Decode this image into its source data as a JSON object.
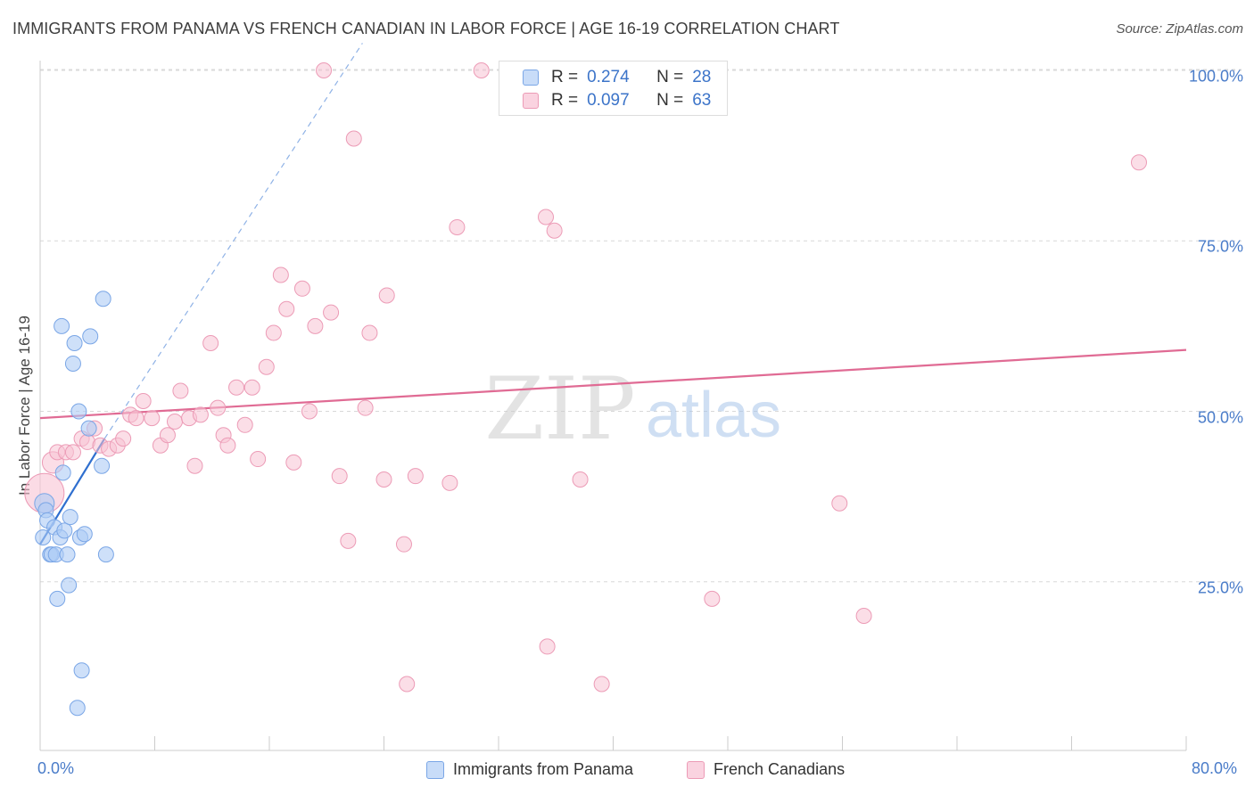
{
  "title": "IMMIGRANTS FROM PANAMA VS FRENCH CANADIAN IN LABOR FORCE | AGE 16-19 CORRELATION CHART",
  "source": "Source: ZipAtlas.com",
  "watermark": {
    "zip": "ZIP",
    "atlas": "atlas"
  },
  "stats": [
    {
      "r_label": "R =",
      "r": "0.274",
      "n_label": "N =",
      "n": "28"
    },
    {
      "r_label": "R =",
      "r": "0.097",
      "n_label": "N =",
      "n": "63"
    }
  ],
  "chart_data": {
    "type": "scatter",
    "title": "IMMIGRANTS FROM PANAMA VS FRENCH CANADIAN IN LABOR FORCE | AGE 16-19 CORRELATION CHART",
    "xlabel": "",
    "ylabel": "In Labor Force | Age 16-19",
    "xlim": [
      0,
      80
    ],
    "ylim": [
      0,
      105
    ],
    "x_tick_labels": [
      "0.0%",
      "80.0%"
    ],
    "y_ticks": [
      25,
      50,
      75,
      100
    ],
    "y_tick_labels": [
      "25.0%",
      "50.0%",
      "75.0%",
      "100.0%"
    ],
    "grid": true,
    "legend_position": "bottom-center",
    "colors": {
      "panama_fill": "#aecbf5",
      "panama_stroke": "#7aa6e6",
      "panama_line": "#2f6fcf",
      "french_fill": "#f8c3d4",
      "french_stroke": "#ec9bb6",
      "french_line": "#e06b94",
      "grid": "#d8d8d8",
      "tick_text": "#4a7cc9"
    },
    "series": [
      {
        "name": "Immigrants from Panama",
        "r": 0.274,
        "n": 28,
        "trend": {
          "x": [
            0,
            4.5
          ],
          "y": [
            30.5,
            46.0
          ]
        },
        "trend_extension": {
          "x": [
            4.5,
            22.5
          ],
          "y": [
            46.0,
            104.0
          ]
        },
        "points": [
          {
            "x": 0.3,
            "y": 36.5
          },
          {
            "x": 0.4,
            "y": 35.5
          },
          {
            "x": 0.5,
            "y": 34.0
          },
          {
            "x": 0.7,
            "y": 29.0
          },
          {
            "x": 0.8,
            "y": 29.0
          },
          {
            "x": 1.0,
            "y": 33.0
          },
          {
            "x": 1.1,
            "y": 29.0
          },
          {
            "x": 1.2,
            "y": 22.5
          },
          {
            "x": 1.4,
            "y": 31.5
          },
          {
            "x": 1.5,
            "y": 62.5
          },
          {
            "x": 1.6,
            "y": 41.0
          },
          {
            "x": 1.7,
            "y": 32.5
          },
          {
            "x": 1.9,
            "y": 29.0
          },
          {
            "x": 2.0,
            "y": 24.5
          },
          {
            "x": 2.1,
            "y": 34.5
          },
          {
            "x": 2.3,
            "y": 57.0
          },
          {
            "x": 2.4,
            "y": 60.0
          },
          {
            "x": 2.6,
            "y": 6.5
          },
          {
            "x": 2.7,
            "y": 50.0
          },
          {
            "x": 2.8,
            "y": 31.5
          },
          {
            "x": 2.9,
            "y": 12.0
          },
          {
            "x": 3.1,
            "y": 32.0
          },
          {
            "x": 3.4,
            "y": 47.5
          },
          {
            "x": 3.5,
            "y": 61.0
          },
          {
            "x": 4.3,
            "y": 42.0
          },
          {
            "x": 4.4,
            "y": 66.5
          },
          {
            "x": 4.6,
            "y": 29.0
          },
          {
            "x": 0.2,
            "y": 31.5
          }
        ]
      },
      {
        "name": "French Canadians",
        "r": 0.097,
        "n": 63,
        "trend": {
          "x": [
            0,
            80
          ],
          "y": [
            49.0,
            59.0
          ]
        },
        "points": [
          {
            "x": 0.3,
            "y": 38.0
          },
          {
            "x": 0.9,
            "y": 42.5
          },
          {
            "x": 1.2,
            "y": 44.0
          },
          {
            "x": 1.8,
            "y": 44.0
          },
          {
            "x": 2.3,
            "y": 44.0
          },
          {
            "x": 2.9,
            "y": 46.0
          },
          {
            "x": 3.3,
            "y": 45.5
          },
          {
            "x": 3.8,
            "y": 47.5
          },
          {
            "x": 4.2,
            "y": 45.0
          },
          {
            "x": 4.8,
            "y": 44.5
          },
          {
            "x": 5.4,
            "y": 45.0
          },
          {
            "x": 5.8,
            "y": 46.0
          },
          {
            "x": 6.3,
            "y": 49.5
          },
          {
            "x": 6.7,
            "y": 49.0
          },
          {
            "x": 7.2,
            "y": 51.5
          },
          {
            "x": 7.8,
            "y": 49.0
          },
          {
            "x": 8.4,
            "y": 45.0
          },
          {
            "x": 8.9,
            "y": 46.5
          },
          {
            "x": 9.4,
            "y": 48.5
          },
          {
            "x": 9.8,
            "y": 53.0
          },
          {
            "x": 10.4,
            "y": 49.0
          },
          {
            "x": 10.8,
            "y": 42.0
          },
          {
            "x": 11.2,
            "y": 49.5
          },
          {
            "x": 11.9,
            "y": 60.0
          },
          {
            "x": 12.4,
            "y": 50.5
          },
          {
            "x": 12.8,
            "y": 46.5
          },
          {
            "x": 13.1,
            "y": 45.0
          },
          {
            "x": 13.7,
            "y": 53.5
          },
          {
            "x": 14.3,
            "y": 48.0
          },
          {
            "x": 14.8,
            "y": 53.5
          },
          {
            "x": 15.2,
            "y": 43.0
          },
          {
            "x": 15.8,
            "y": 56.5
          },
          {
            "x": 16.3,
            "y": 61.5
          },
          {
            "x": 16.8,
            "y": 70.0
          },
          {
            "x": 17.2,
            "y": 65.0
          },
          {
            "x": 17.7,
            "y": 42.5
          },
          {
            "x": 18.3,
            "y": 68.0
          },
          {
            "x": 18.8,
            "y": 50.0
          },
          {
            "x": 19.2,
            "y": 62.5
          },
          {
            "x": 19.8,
            "y": 100.0
          },
          {
            "x": 20.3,
            "y": 64.5
          },
          {
            "x": 20.9,
            "y": 40.5
          },
          {
            "x": 21.5,
            "y": 31.0
          },
          {
            "x": 21.9,
            "y": 90.0
          },
          {
            "x": 22.7,
            "y": 50.5
          },
          {
            "x": 23.0,
            "y": 61.5
          },
          {
            "x": 24.2,
            "y": 67.0
          },
          {
            "x": 25.4,
            "y": 30.5
          },
          {
            "x": 25.6,
            "y": 10.0
          },
          {
            "x": 26.2,
            "y": 40.5
          },
          {
            "x": 28.6,
            "y": 39.5
          },
          {
            "x": 29.1,
            "y": 77.0
          },
          {
            "x": 30.8,
            "y": 100.0
          },
          {
            "x": 35.3,
            "y": 78.5
          },
          {
            "x": 35.9,
            "y": 76.5
          },
          {
            "x": 35.4,
            "y": 15.5
          },
          {
            "x": 37.7,
            "y": 40.0
          },
          {
            "x": 39.2,
            "y": 10.0
          },
          {
            "x": 46.9,
            "y": 22.5
          },
          {
            "x": 55.8,
            "y": 36.5
          },
          {
            "x": 57.5,
            "y": 20.0
          },
          {
            "x": 76.7,
            "y": 86.5
          },
          {
            "x": 24.0,
            "y": 40.0
          }
        ]
      }
    ]
  },
  "legend": [
    {
      "label": "Immigrants from Panama"
    },
    {
      "label": "French Canadians"
    }
  ]
}
